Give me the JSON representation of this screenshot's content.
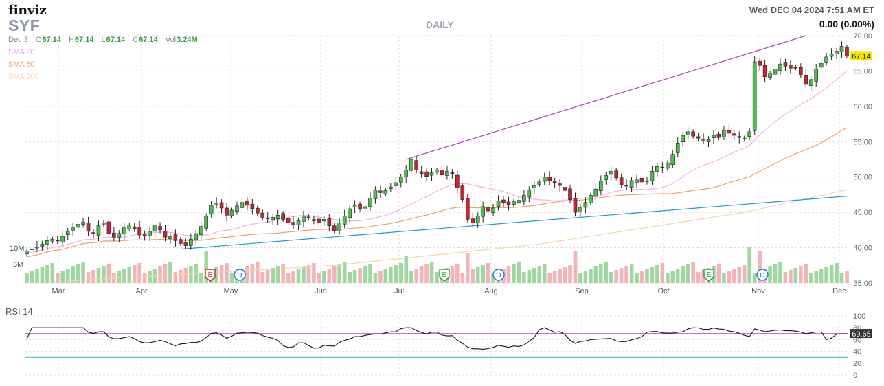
{
  "header": {
    "logo": "finviz",
    "ticker": "SYF",
    "period": "DAILY",
    "datetime": "Wed DEC 04 2024 7:51 AM ET",
    "change": "0.00 (0.00%)"
  },
  "ohlc": {
    "date": "Dec 3",
    "o_label": "O",
    "o": "67.14",
    "h_label": "H",
    "h": "67.14",
    "l_label": "L",
    "l": "67.14",
    "c_label": "C",
    "c": "67.14",
    "vol_label": "Vol",
    "vol": "3.24M"
  },
  "legend": {
    "sma20": {
      "label": "SMA 20",
      "color": "#f0a0e0"
    },
    "sma50": {
      "label": "SMA 50",
      "color": "#f0a060"
    },
    "sma200": {
      "label": "SMA 200",
      "color": "#f5d4a8"
    }
  },
  "colors": {
    "up": "#2e9a3a",
    "up_fill": "#4bbf4b",
    "down": "#cc2233",
    "trend_upper": "#b040c0",
    "trend_lower": "#1a9ad6",
    "rsi_line": "#111",
    "rsi_upper": "#b040c0",
    "rsi_lower": "#34b8c8",
    "price_tag": "#f5e600"
  },
  "rsi": {
    "label": "RSI 14",
    "value": "69.65",
    "ticks": [
      "100",
      "80",
      "60",
      "40",
      "20",
      "0"
    ]
  },
  "chart_data": {
    "type": "candlestick",
    "title": "SYF DAILY",
    "y_ticks": [
      "70.00",
      "65.00",
      "60.00",
      "55.00",
      "50.00",
      "45.00",
      "40.00",
      "35.00"
    ],
    "ylim": [
      35,
      70
    ],
    "x_ticks": [
      "Mar",
      "Apr",
      "May",
      "Jun",
      "Jul",
      "Aug",
      "Sep",
      "Oct",
      "Nov",
      "Dec"
    ],
    "volume_ticks": [
      "10M",
      "5M"
    ],
    "last_price": "67.14",
    "events": [
      {
        "type": "E",
        "month": "Apr"
      },
      {
        "type": "D",
        "month": "May"
      },
      {
        "type": "E",
        "month": "Jul"
      },
      {
        "type": "D",
        "month": "Aug"
      },
      {
        "type": "E",
        "month": "Oct"
      },
      {
        "type": "D",
        "month": "Nov"
      }
    ],
    "close_series": [
      39.5,
      39.8,
      40.1,
      40.5,
      41.0,
      41.2,
      41.0,
      41.6,
      42.3,
      42.8,
      43.3,
      43.6,
      42.3,
      42.0,
      43.1,
      43.5,
      42.0,
      41.5,
      42.0,
      42.8,
      43.2,
      42.7,
      41.8,
      41.7,
      42.3,
      43.1,
      42.5,
      41.5,
      41.6,
      41.0,
      40.6,
      40.3,
      41.2,
      42.0,
      43.0,
      44.5,
      46.0,
      46.3,
      45.6,
      44.6,
      45.3,
      45.9,
      46.4,
      46.0,
      45.5,
      44.9,
      44.3,
      44.1,
      44.3,
      44.6,
      44.0,
      43.5,
      43.2,
      43.8,
      44.5,
      44.2,
      43.8,
      43.6,
      44.0,
      43.1,
      42.4,
      43.5,
      44.5,
      45.5,
      46.0,
      45.5,
      45.8,
      47.0,
      48.2,
      47.8,
      48.1,
      48.6,
      49.2,
      50.0,
      51.0,
      52.5,
      51.0,
      50.5,
      50.1,
      50.6,
      51.0,
      50.3,
      50.8,
      50.5,
      48.5,
      46.8,
      44.0,
      43.5,
      44.5,
      45.8,
      45.2,
      45.6,
      46.6,
      46.4,
      46.1,
      46.5,
      46.7,
      47.4,
      48.2,
      48.8,
      49.3,
      50.0,
      49.5,
      49.2,
      48.8,
      48.1,
      46.8,
      45.0,
      45.7,
      46.4,
      47.4,
      48.3,
      49.4,
      50.2,
      50.8,
      49.9,
      48.9,
      48.7,
      49.5,
      49.6,
      49.3,
      49.4,
      50.8,
      51.5,
      51.4,
      52.0,
      53.2,
      54.8,
      55.9,
      56.4,
      55.8,
      55.5,
      55.2,
      55.3,
      55.9,
      55.6,
      56.6,
      56.2,
      55.9,
      55.6,
      55.5,
      56.4,
      66.3,
      65.8,
      64.2,
      64.7,
      65.3,
      66.0,
      65.7,
      65.4,
      65.5,
      64.5,
      63.1,
      63.8,
      65.3,
      66.1,
      67.0,
      67.4,
      67.8,
      68.5,
      67.14
    ]
  }
}
